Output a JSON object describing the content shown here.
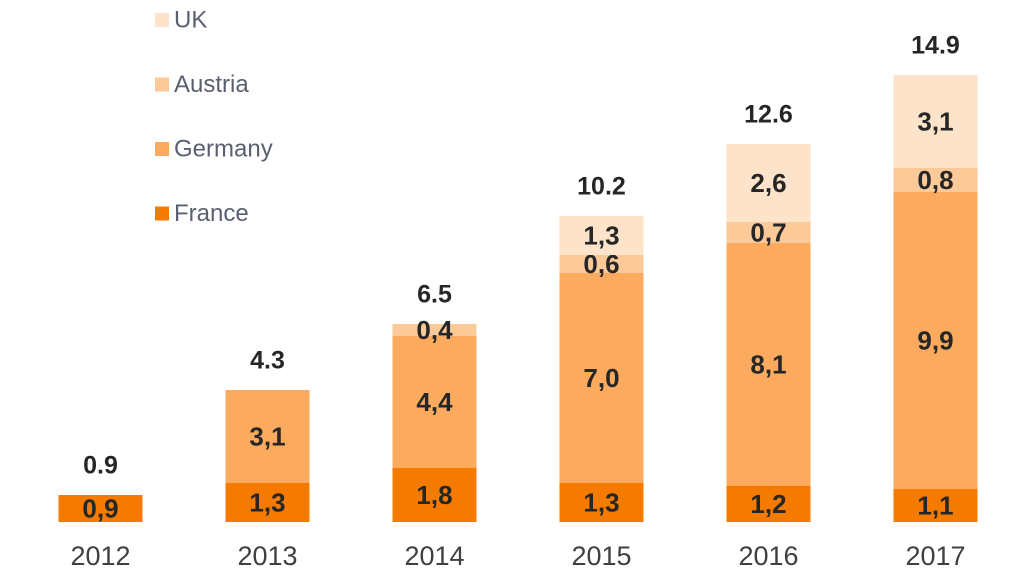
{
  "chart_data": {
    "type": "stacked_bar",
    "categories": [
      "2012",
      "2013",
      "2014",
      "2015",
      "2016",
      "2017"
    ],
    "series": [
      {
        "name": "France",
        "color": "#f47b00",
        "values": [
          0.9,
          1.3,
          1.8,
          1.3,
          1.2,
          1.1
        ],
        "value_labels": [
          "0,9",
          "1,3",
          "1,8",
          "1,3",
          "1,2",
          "1,1"
        ]
      },
      {
        "name": "Germany",
        "color": "#fbaa5e",
        "values": [
          null,
          3.1,
          4.4,
          7.0,
          8.1,
          9.9
        ],
        "value_labels": [
          null,
          "3,1",
          "4,4",
          "7,0",
          "8,1",
          "9,9"
        ]
      },
      {
        "name": "Austria",
        "color": "#fcc999",
        "values": [
          null,
          null,
          0.4,
          0.6,
          0.7,
          0.8
        ],
        "value_labels": [
          null,
          null,
          "0,4",
          "0,6",
          "0,7",
          "0,8"
        ]
      },
      {
        "name": "UK",
        "color": "#fde3c9",
        "values": [
          null,
          null,
          null,
          1.3,
          2.6,
          3.1
        ],
        "value_labels": [
          null,
          null,
          null,
          "1,3",
          "2,6",
          "3,1"
        ]
      }
    ],
    "totals": [
      0.9,
      4.3,
      6.5,
      10.2,
      12.6,
      14.9
    ]
  }
}
